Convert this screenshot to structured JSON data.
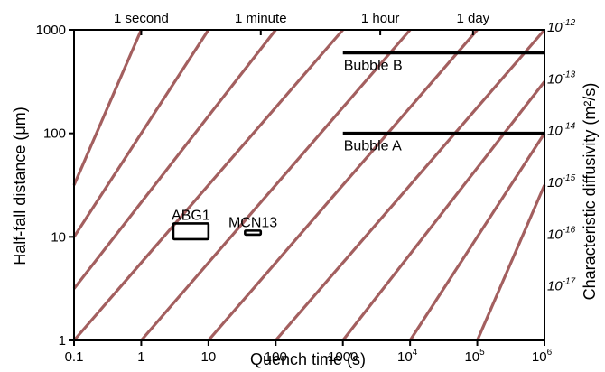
{
  "chart_data": {
    "type": "line",
    "xscale": "log",
    "yscale": "log",
    "xlim": [
      0.1,
      1000000
    ],
    "ylim": [
      1,
      1000
    ],
    "xlabel": "Quench time (s)",
    "ylabel": "Half-fall distance (μm)",
    "y2label": "Characteristic diffusivity (m²/s)",
    "x_ticks": [
      {
        "value": 0.1,
        "label": "0.1"
      },
      {
        "value": 1,
        "label": "1"
      },
      {
        "value": 10,
        "label": "10"
      },
      {
        "value": 100,
        "label": "100"
      },
      {
        "value": 1000,
        "label": "1000"
      },
      {
        "value": 10000,
        "base": "10",
        "exp": "4"
      },
      {
        "value": 100000,
        "base": "10",
        "exp": "5"
      },
      {
        "value": 1000000,
        "base": "10",
        "exp": "6"
      }
    ],
    "y_ticks": [
      {
        "value": 1,
        "label": "1"
      },
      {
        "value": 10,
        "label": "10"
      },
      {
        "value": 100,
        "label": "100"
      },
      {
        "value": 1000,
        "label": "1000"
      }
    ],
    "top_ticks": [
      {
        "value": 1,
        "label": "1 second"
      },
      {
        "value": 60,
        "label": "1 minute"
      },
      {
        "value": 3600,
        "label": "1 hour"
      },
      {
        "value": 86400,
        "label": "1 day"
      }
    ],
    "diffusivity_lines": {
      "color": "#a35f5f",
      "series": [
        {
          "x0": 0.1,
          "x1": 1,
          "y0": 31.6,
          "y1": 1000
        },
        {
          "x0": 0.1,
          "x1": 10,
          "y0": 10,
          "y1": 1000
        },
        {
          "x0": 0.1,
          "x1": 100,
          "y0": 3.16,
          "y1": 1000
        },
        {
          "x0": 0.1,
          "x1": 1000,
          "y0": 1,
          "y1": 1000
        },
        {
          "x0": 1,
          "x1": 10000,
          "y0": 1,
          "y1": 1000
        },
        {
          "x0": 10,
          "x1": 100000,
          "y0": 1,
          "y1": 1000
        },
        {
          "x0": 100,
          "x1": 1000000,
          "y0": 1,
          "y1": 1000
        },
        {
          "x0": 1000,
          "x1": 1000000,
          "y0": 1,
          "y1": 316
        },
        {
          "x0": 10000,
          "x1": 1000000,
          "y0": 1,
          "y1": 100
        },
        {
          "x0": 100000,
          "x1": 1000000,
          "y0": 1,
          "y1": 31.6
        }
      ]
    },
    "diffusivity_labels": [
      {
        "base": "10",
        "exp": "-12",
        "y": 1000
      },
      {
        "base": "10",
        "exp": "-13",
        "y": 316
      },
      {
        "base": "10",
        "exp": "-14",
        "y": 100
      },
      {
        "base": "10",
        "exp": "-15",
        "y": 31.6
      },
      {
        "base": "10",
        "exp": "-16",
        "y": 10
      },
      {
        "base": "10",
        "exp": "-17",
        "y": 3.16
      }
    ],
    "bubbles": [
      {
        "label": "Bubble B",
        "x": [
          1000,
          1000000
        ],
        "y": 600
      },
      {
        "label": "Bubble A",
        "x": [
          1000,
          1000000
        ],
        "y": 100
      }
    ],
    "samples": [
      {
        "label": "ABG1",
        "x": [
          3,
          10
        ],
        "y": [
          9.5,
          13.5
        ]
      },
      {
        "label": "MCN13",
        "x": [
          35,
          60
        ],
        "y": [
          10.5,
          11.5
        ]
      }
    ]
  }
}
